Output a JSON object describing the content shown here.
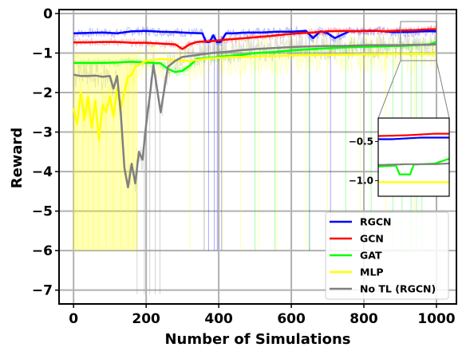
{
  "chart_data": {
    "type": "line",
    "title": "",
    "xlabel": "Number of Simulations",
    "ylabel": "Reward",
    "xlim": [
      -40,
      1055
    ],
    "ylim": [
      -7.35,
      0.1
    ],
    "xticks": [
      0,
      200,
      400,
      600,
      800,
      1000
    ],
    "yticks": [
      0,
      -1,
      -2,
      -3,
      -4,
      -5,
      -6,
      -7
    ],
    "xtick_labels": [
      "0",
      "200",
      "400",
      "600",
      "800",
      "1000"
    ],
    "ytick_labels": [
      "0",
      "−1",
      "−2",
      "−3",
      "−4",
      "−5",
      "−6",
      "−7"
    ],
    "grid": true,
    "legend_position": "lower-right",
    "series": [
      {
        "name": "RGCN",
        "color": "#0000ff",
        "x": [
          0,
          40,
          80,
          120,
          160,
          200,
          240,
          280,
          320,
          355,
          365,
          375,
          385,
          395,
          405,
          420,
          440,
          480,
          520,
          560,
          600,
          640,
          660,
          680,
          700,
          720,
          760,
          800,
          840,
          880,
          920,
          960,
          1000
        ],
        "y": [
          -0.5,
          -0.49,
          -0.48,
          -0.5,
          -0.45,
          -0.44,
          -0.46,
          -0.47,
          -0.49,
          -0.5,
          -0.72,
          -0.72,
          -0.55,
          -0.72,
          -0.72,
          -0.5,
          -0.5,
          -0.48,
          -0.48,
          -0.46,
          -0.46,
          -0.44,
          -0.62,
          -0.45,
          -0.5,
          -0.62,
          -0.45,
          -0.44,
          -0.44,
          -0.47,
          -0.47,
          -0.45,
          -0.45
        ]
      },
      {
        "name": "GCN",
        "color": "#ff0000",
        "x": [
          0,
          40,
          80,
          120,
          160,
          200,
          240,
          280,
          300,
          320,
          340,
          380,
          420,
          460,
          500,
          540,
          580,
          620,
          660,
          700,
          740,
          780,
          820,
          860,
          900,
          940,
          980,
          1000
        ],
        "y": [
          -0.73,
          -0.73,
          -0.72,
          -0.72,
          -0.74,
          -0.74,
          -0.76,
          -0.78,
          -0.9,
          -0.78,
          -0.72,
          -0.7,
          -0.66,
          -0.63,
          -0.6,
          -0.57,
          -0.53,
          -0.5,
          -0.48,
          -0.45,
          -0.44,
          -0.45,
          -0.43,
          -0.45,
          -0.43,
          -0.42,
          -0.4,
          -0.4
        ]
      },
      {
        "name": "GAT",
        "color": "#00ff00",
        "x": [
          0,
          40,
          80,
          120,
          160,
          200,
          240,
          260,
          280,
          300,
          320,
          340,
          380,
          420,
          460,
          500,
          540,
          580,
          620,
          660,
          700,
          740,
          800,
          860,
          880,
          900,
          940,
          980,
          1000
        ],
        "y": [
          -1.25,
          -1.25,
          -1.25,
          -1.24,
          -1.22,
          -1.24,
          -1.26,
          -1.4,
          -1.48,
          -1.45,
          -1.32,
          -1.15,
          -1.12,
          -1.08,
          -1.05,
          -1.0,
          -0.98,
          -0.95,
          -0.92,
          -0.9,
          -0.88,
          -0.86,
          -0.84,
          -0.83,
          -0.82,
          -0.82,
          -0.8,
          -0.78,
          -0.72
        ]
      },
      {
        "name": "MLP",
        "color": "#ffff00",
        "x": [
          0,
          10,
          20,
          30,
          40,
          50,
          60,
          70,
          80,
          90,
          100,
          110,
          120,
          130,
          140,
          150,
          160,
          170,
          180,
          200,
          240,
          280,
          320,
          360,
          400,
          440,
          480,
          520,
          560,
          600,
          640,
          680,
          720,
          760,
          800,
          840,
          880,
          920,
          960,
          1000
        ],
        "y": [
          -2.4,
          -2.8,
          -2.0,
          -2.7,
          -2.1,
          -2.9,
          -2.2,
          -3.2,
          -2.3,
          -2.5,
          -2.1,
          -2.6,
          -1.9,
          -2.4,
          -2.0,
          -1.6,
          -1.55,
          -1.35,
          -1.3,
          -1.2,
          -1.15,
          -1.18,
          -1.2,
          -1.15,
          -1.12,
          -1.1,
          -1.1,
          -1.08,
          -1.08,
          -1.06,
          -1.05,
          -1.05,
          -1.04,
          -1.04,
          -1.03,
          -1.03,
          -1.02,
          -1.02,
          -1.02,
          -1.02
        ]
      },
      {
        "name": "No TL (RGCN)",
        "color": "#808080",
        "x": [
          0,
          20,
          40,
          60,
          80,
          100,
          110,
          120,
          130,
          140,
          150,
          160,
          170,
          180,
          190,
          200,
          210,
          220,
          230,
          240,
          260,
          280,
          300,
          340,
          380,
          420,
          460,
          500,
          540,
          580,
          620,
          660,
          700,
          740,
          780,
          820,
          860,
          900,
          940,
          980,
          1000
        ],
        "y": [
          -1.55,
          -1.58,
          -1.58,
          -1.57,
          -1.6,
          -1.58,
          -1.9,
          -1.58,
          -2.5,
          -3.9,
          -4.4,
          -3.8,
          -4.3,
          -3.5,
          -3.7,
          -2.8,
          -2.1,
          -1.3,
          -1.9,
          -2.5,
          -1.35,
          -1.2,
          -1.1,
          -1.05,
          -1.0,
          -0.97,
          -0.93,
          -0.9,
          -0.88,
          -0.86,
          -0.84,
          -0.83,
          -0.82,
          -0.82,
          -0.81,
          -0.8,
          -0.8,
          -0.8,
          -0.79,
          -0.79,
          -0.78
        ]
      }
    ],
    "inset": {
      "xlim": [
        900,
        1000
      ],
      "ylim": [
        -1.2,
        -0.2
      ],
      "yticks": [
        -0.5,
        -1.0
      ],
      "ytick_labels": [
        "−0.5",
        "−1.0"
      ]
    }
  }
}
